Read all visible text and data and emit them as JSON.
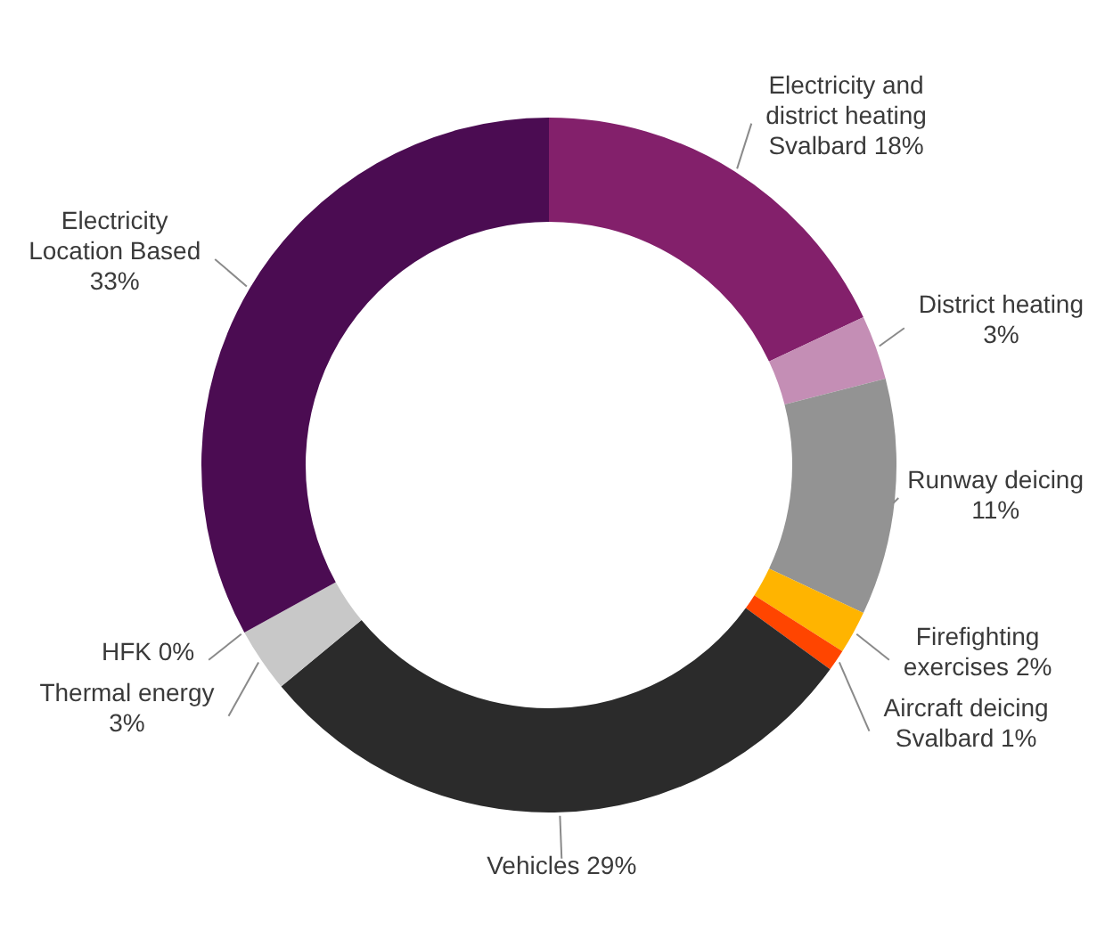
{
  "chart_data": {
    "type": "donut",
    "categories": [
      "Electricity and district heating Svalbard",
      "District heating",
      "Runway deicing",
      "Firefighting exercises",
      "Aircraft deicing Svalbard",
      "Vehicles",
      "Thermal energy",
      "HFK",
      "Electricity Location Based"
    ],
    "values": [
      18,
      3,
      11,
      2,
      1,
      29,
      3,
      0,
      33
    ],
    "value_labels": [
      "18%",
      "3%",
      "11%",
      "2%",
      "1%",
      "29%",
      "3%",
      "0%",
      "33%"
    ],
    "colors": [
      "#83206b",
      "#c48eb5",
      "#939393",
      "#ffb400",
      "#ff4500",
      "#2b2b2b",
      "#c8c8c8",
      "#a0a0a0",
      "#4b0c52"
    ]
  }
}
